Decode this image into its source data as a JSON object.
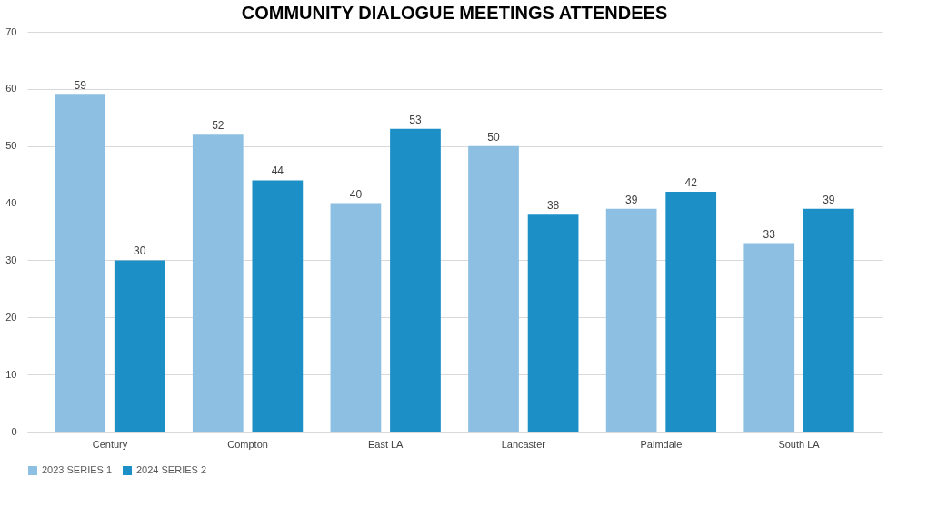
{
  "chart_data": {
    "type": "bar",
    "title": "COMMUNITY DIALOGUE MEETINGS ATTENDEES",
    "categories": [
      "Century",
      "Compton",
      "East LA",
      "Lancaster",
      "Palmdale",
      "South LA"
    ],
    "series": [
      {
        "name": "2023 SERIES 1",
        "color": "#8cbfe2",
        "values": [
          59,
          52,
          40,
          50,
          39,
          33
        ]
      },
      {
        "name": "2024 SERIES 2",
        "color": "#1b8fc6",
        "values": [
          30,
          44,
          53,
          38,
          42,
          39
        ]
      }
    ],
    "ylim": [
      0,
      70
    ],
    "yticks": [
      0,
      10,
      20,
      30,
      40,
      50,
      60,
      70
    ],
    "grid": "y",
    "legend": "bottom",
    "data_labels": true
  }
}
